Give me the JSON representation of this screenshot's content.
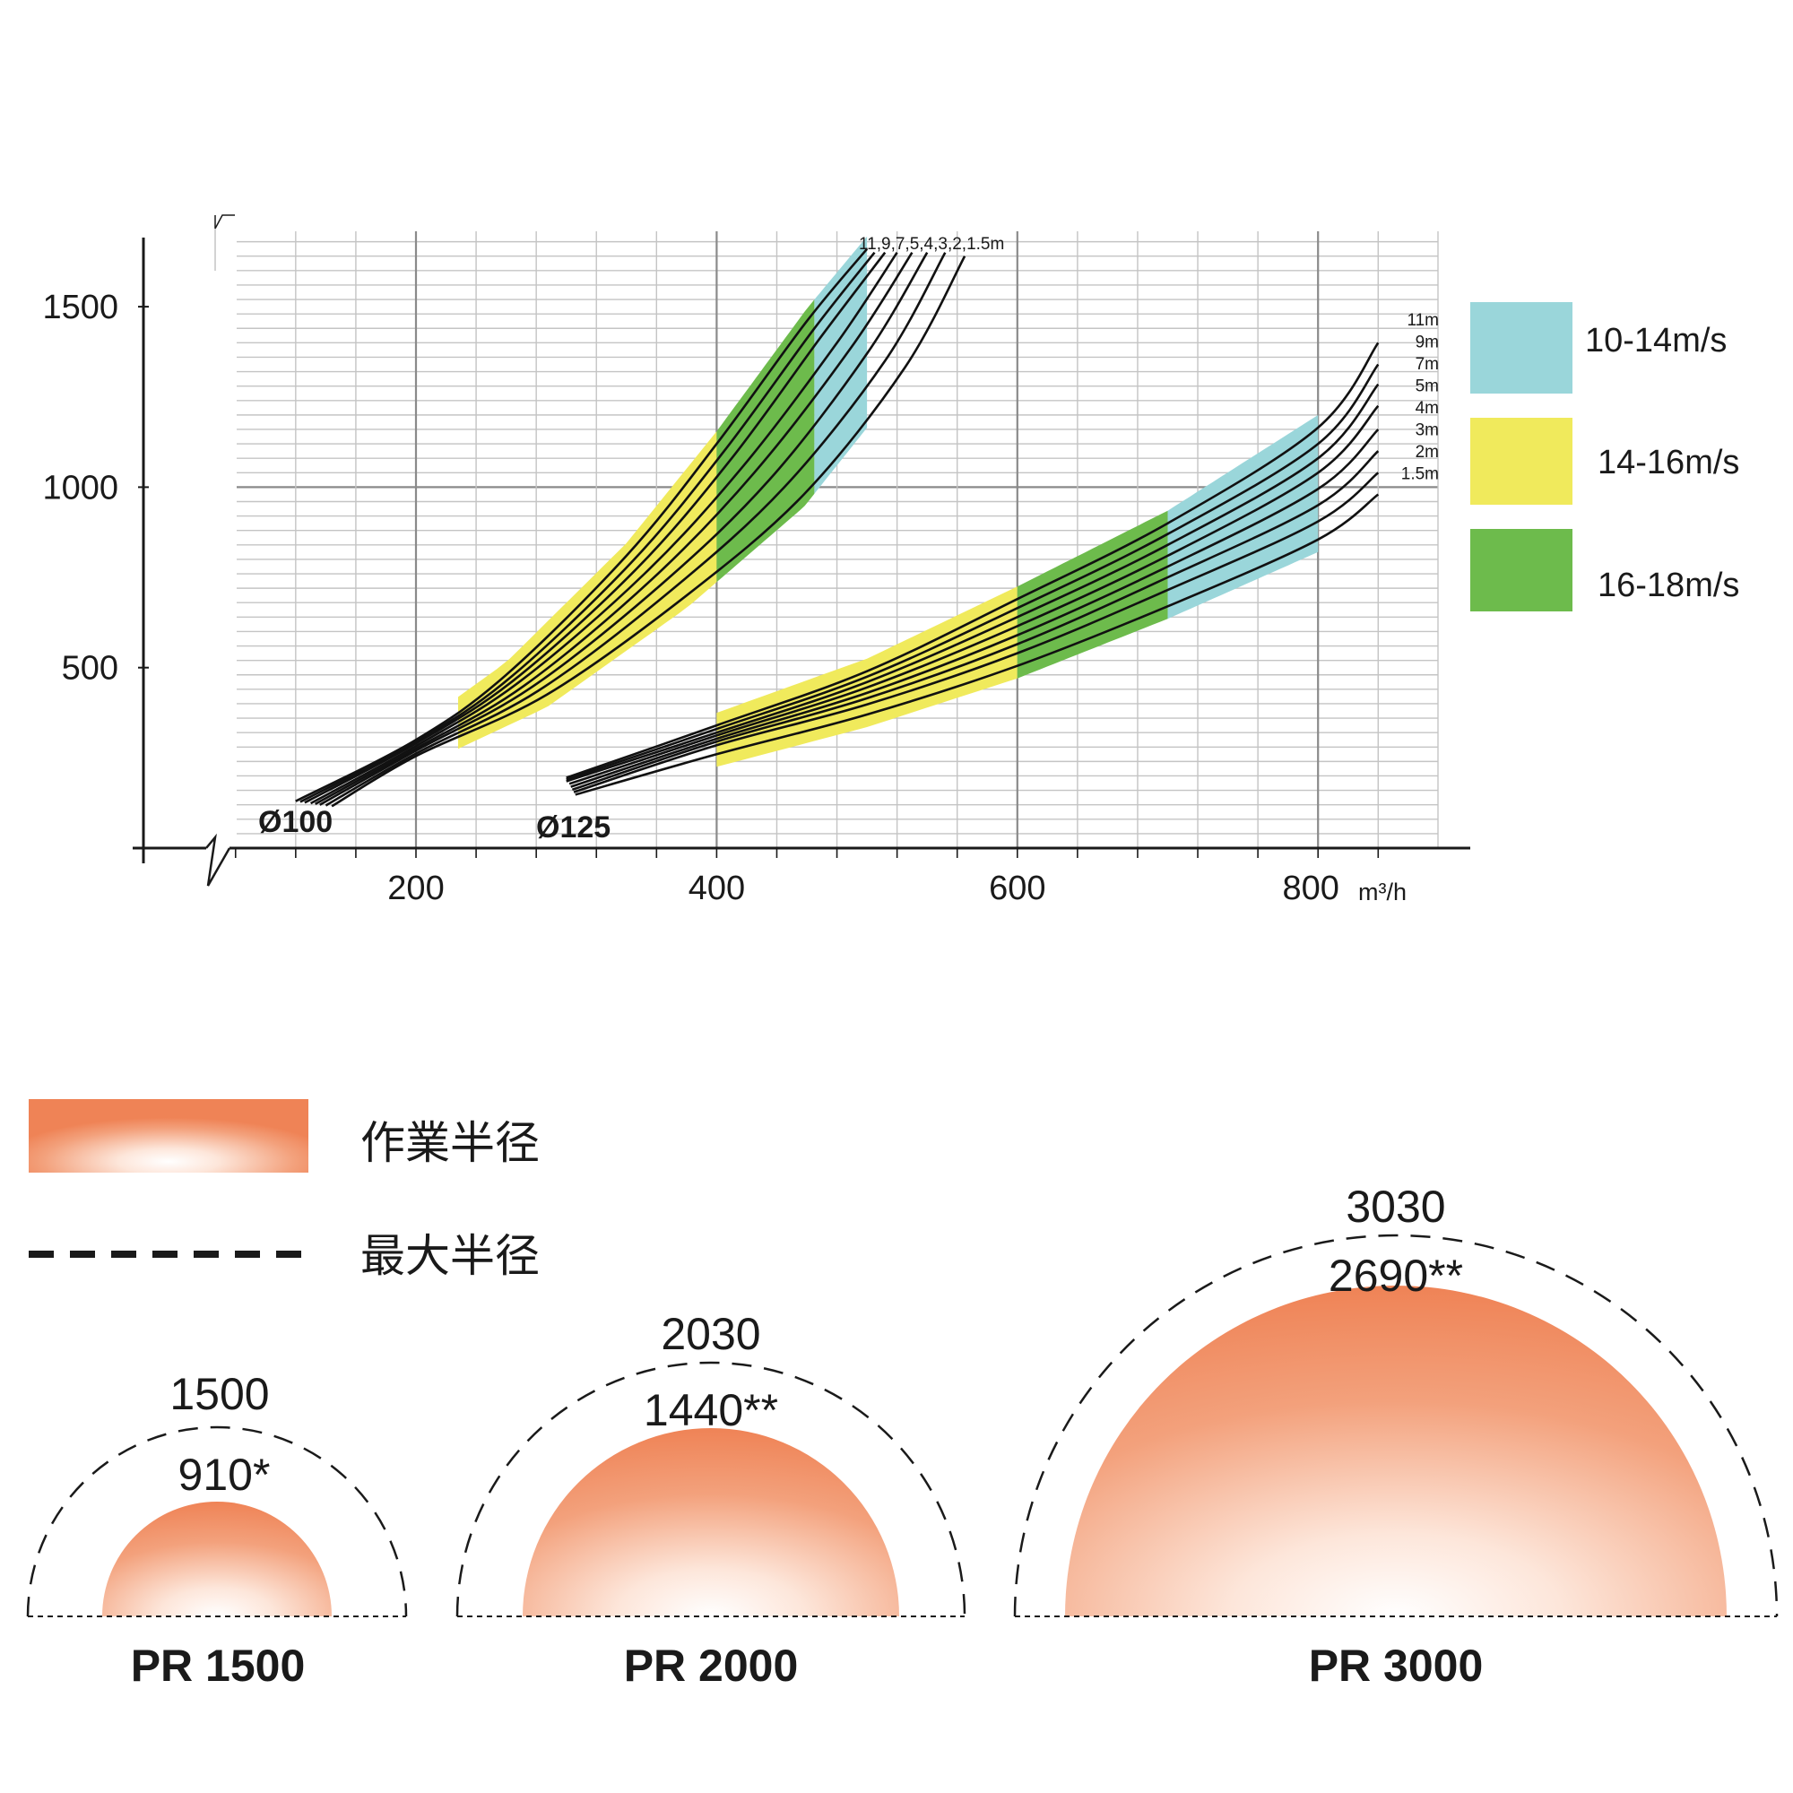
{
  "chart_data": [
    {
      "type": "line",
      "title": "",
      "x_unit": "m³/h",
      "xlim": [
        50,
        855
      ],
      "ylim": [
        0,
        1700
      ],
      "x_ticks": [
        200,
        400,
        600,
        800
      ],
      "y_ticks": [
        500,
        1000,
        1500
      ],
      "grid": true,
      "legend_placement": "right",
      "velocity_bands": [
        {
          "label": "10-14m/s",
          "color": "#9ad6da"
        },
        {
          "label": "14-16m/s",
          "color": "#f0ea5c"
        },
        {
          "label": "16-18m/s",
          "color": "#6dbb4c"
        }
      ],
      "series_groups": [
        {
          "duct": "Ø100",
          "length_label": "11,9,7,5,4,3,2,1.5m",
          "series": [
            {
              "x": [
                120,
                200,
                260,
                340,
                400,
                460,
                500
              ],
              "y": [
                130,
                300,
                480,
                810,
                1120,
                1460,
                1660
              ]
            },
            {
              "x": [
                123,
                200,
                262,
                343,
                405,
                465,
                505
              ],
              "y": [
                128,
                295,
                470,
                790,
                1100,
                1440,
                1650
              ]
            },
            {
              "x": [
                126,
                200,
                265,
                347,
                410,
                470,
                512
              ],
              "y": [
                126,
                290,
                465,
                775,
                1080,
                1420,
                1650
              ]
            },
            {
              "x": [
                130,
                200,
                268,
                352,
                418,
                480,
                520
              ],
              "y": [
                124,
                283,
                458,
                760,
                1060,
                1400,
                1650
              ]
            },
            {
              "x": [
                133,
                200,
                272,
                357,
                425,
                490,
                530
              ],
              "y": [
                122,
                276,
                450,
                745,
                1040,
                1390,
                1650
              ]
            },
            {
              "x": [
                136,
                200,
                276,
                363,
                435,
                500,
                540
              ],
              "y": [
                120,
                270,
                443,
                730,
                1020,
                1370,
                1650
              ]
            },
            {
              "x": [
                140,
                200,
                281,
                370,
                445,
                512,
                552
              ],
              "y": [
                118,
                262,
                435,
                715,
                1000,
                1350,
                1650
              ]
            },
            {
              "x": [
                144,
                200,
                287,
                380,
                458,
                525,
                565
              ],
              "y": [
                116,
                255,
                425,
                700,
                980,
                1330,
                1640
              ]
            }
          ],
          "bands": {
            "yellow": [
              228,
              400
            ],
            "green": [
              400,
              465
            ],
            "blue": [
              465,
              500
            ]
          }
        },
        {
          "duct": "Ø125",
          "series": [
            {
              "name": "11m",
              "x": [
                300,
                400,
                500,
                600,
                700,
                800,
                840
              ],
              "y": [
                195,
                340,
                490,
                690,
                900,
                1165,
                1400
              ]
            },
            {
              "name": "9m",
              "x": [
                300,
                400,
                500,
                600,
                700,
                800,
                840
              ],
              "y": [
                190,
                330,
                475,
                665,
                870,
                1120,
                1340
              ]
            },
            {
              "name": "7m",
              "x": [
                300,
                400,
                500,
                600,
                700,
                800,
                840
              ],
              "y": [
                185,
                320,
                460,
                640,
                840,
                1080,
                1285
              ]
            },
            {
              "name": "5m",
              "x": [
                302,
                400,
                500,
                600,
                700,
                800,
                840
              ],
              "y": [
                178,
                312,
                445,
                615,
                810,
                1040,
                1225
              ]
            },
            {
              "name": "4m",
              "x": [
                303,
                400,
                500,
                600,
                700,
                800,
                840
              ],
              "y": [
                170,
                303,
                430,
                590,
                780,
                995,
                1160
              ]
            },
            {
              "name": "3m",
              "x": [
                304,
                400,
                500,
                600,
                700,
                800,
                840
              ],
              "y": [
                162,
                295,
                415,
                565,
                750,
                950,
                1100
              ]
            },
            {
              "name": "2m",
              "x": [
                305,
                400,
                500,
                600,
                700,
                800,
                840
              ],
              "y": [
                155,
                285,
                398,
                540,
                715,
                905,
                1040
              ]
            },
            {
              "name": "1.5m",
              "x": [
                306,
                400,
                500,
                600,
                700,
                800,
                840
              ],
              "y": [
                148,
                260,
                370,
                505,
                670,
                855,
                980
              ]
            }
          ],
          "bands": {
            "yellow": [
              400,
              600
            ],
            "green": [
              600,
              700
            ],
            "blue": [
              700,
              800
            ]
          }
        }
      ]
    },
    {
      "type": "diagram",
      "legend": [
        {
          "label": "作業半径",
          "style": "gradient-fill",
          "color": "#ef8356"
        },
        {
          "label": "最大半径",
          "style": "dashed-line"
        }
      ],
      "models": [
        {
          "name": "PR 1500",
          "working_radius": "910*",
          "max_radius": "1500"
        },
        {
          "name": "PR 2000",
          "working_radius": "1440**",
          "max_radius": "2030"
        },
        {
          "name": "PR 3000",
          "working_radius": "2690**",
          "max_radius": "3030"
        }
      ]
    }
  ],
  "labels": {
    "x_axis": [
      "200",
      "400",
      "600",
      "800"
    ],
    "x_unit_text": "m³/h",
    "y_axis": [
      "1500",
      "1000",
      "500"
    ],
    "duct_100": "Ø100",
    "duct_125": "Ø125",
    "group1_lengths": "11,9,7,5,4,3,2,1.5m",
    "group2_lengths": [
      "11m",
      "9m",
      "7m",
      "5m",
      "4m",
      "3m",
      "2m",
      "1.5m"
    ]
  }
}
